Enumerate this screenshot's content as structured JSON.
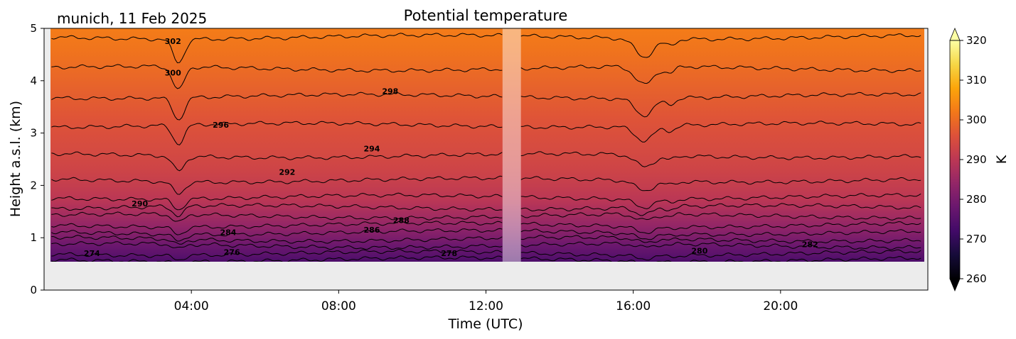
{
  "chart_data": {
    "type": "heatmap",
    "title": "Potential temperature",
    "subtitle": "munich, 11 Feb 2025",
    "xlabel": "Time (UTC)",
    "ylabel": "Height a.s.l. (km)",
    "x_range_hours": [
      0,
      24
    ],
    "ylim": [
      0,
      5
    ],
    "x_tick_labels": [
      "04:00",
      "08:00",
      "12:00",
      "16:00",
      "20:00"
    ],
    "y_tick_labels": [
      "0",
      "1",
      "2",
      "3",
      "4",
      "5"
    ],
    "colorbar": {
      "label": "K",
      "range": [
        260,
        320
      ],
      "tick_labels": [
        "260",
        "270",
        "280",
        "290",
        "300",
        "310",
        "320"
      ],
      "colormap": "inferno",
      "extend": "both"
    },
    "data_height_range_km": [
      0.55,
      5
    ],
    "missing_data_interval_hours": [
      12.45,
      12.95
    ],
    "shaded_interval_hours": [
      12.45,
      12.95
    ],
    "contour_interval_k": 2,
    "theta_profile": {
      "heights_km": [
        0.55,
        0.7,
        0.85,
        1.0,
        1.2,
        1.5,
        1.7,
        2.0,
        2.3,
        2.7,
        3.0,
        3.3,
        3.7,
        4.1,
        4.5,
        5.0
      ],
      "theta_k": [
        273.5,
        276,
        278,
        280.5,
        283.5,
        287,
        289.5,
        291.5,
        293,
        294.5,
        295.5,
        296.5,
        298,
        299.5,
        301,
        302.5
      ]
    },
    "contour_labels": [
      {
        "text": "274",
        "hour": 1.3,
        "height_km": 0.65
      },
      {
        "text": "276",
        "hour": 5.1,
        "height_km": 0.67
      },
      {
        "text": "278",
        "hour": 11.0,
        "height_km": 0.65
      },
      {
        "text": "280",
        "hour": 17.8,
        "height_km": 0.7
      },
      {
        "text": "282",
        "hour": 20.8,
        "height_km": 0.82
      },
      {
        "text": "284",
        "hour": 5.0,
        "height_km": 1.05
      },
      {
        "text": "286",
        "hour": 8.9,
        "height_km": 1.1
      },
      {
        "text": "288",
        "hour": 9.7,
        "height_km": 1.28
      },
      {
        "text": "290",
        "hour": 2.6,
        "height_km": 1.6
      },
      {
        "text": "292",
        "hour": 6.6,
        "height_km": 2.2
      },
      {
        "text": "294",
        "hour": 8.9,
        "height_km": 2.65
      },
      {
        "text": "296",
        "hour": 4.8,
        "height_km": 3.1
      },
      {
        "text": "298",
        "hour": 9.4,
        "height_km": 3.75
      },
      {
        "text": "300",
        "hour": 3.5,
        "height_km": 4.1
      },
      {
        "text": "302",
        "hour": 3.5,
        "height_km": 4.7
      }
    ]
  }
}
